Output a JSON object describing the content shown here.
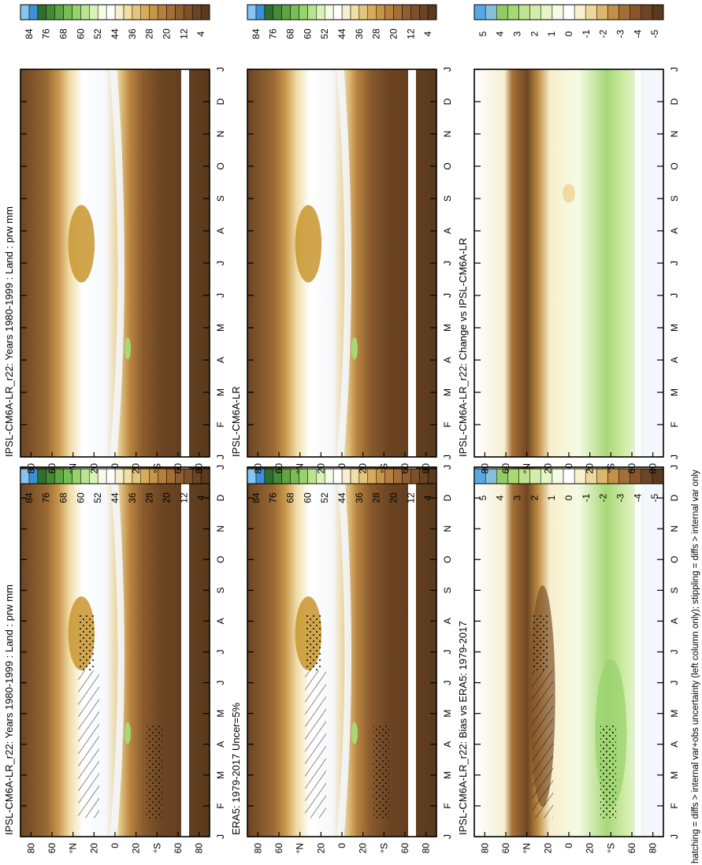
{
  "page": {
    "footnote": "hatching = diffs > internal var+obs uncertainty (left column only); stippling = diffs > internal var only"
  },
  "colors": {
    "abs_scale": [
      "#5a3a1c",
      "#6b4423",
      "#7d5129",
      "#8f5f30",
      "#a46f36",
      "#b67f3d",
      "#c79546",
      "#d6ac5c",
      "#e4c57e",
      "#f0dea5",
      "#f8efcf",
      "#ffffff",
      "#f5fbe8",
      "#d9f2b7",
      "#b9e48e",
      "#97d26c",
      "#78bf53",
      "#5da443",
      "#468a36",
      "#2f6f2d",
      "#3e8fd7",
      "#86c4f1"
    ],
    "diff_scale": [
      "#5a3a1c",
      "#6e4523",
      "#87562b",
      "#a46f36",
      "#c39047",
      "#dcb66c",
      "#eed79d",
      "#f7efcd",
      "#ffffff",
      "#f6fbe4",
      "#e6f5c7",
      "#d2edaa",
      "#bde38e",
      "#a7d876",
      "#93cc64",
      "#84bfdc",
      "#56a8e6"
    ],
    "abs_background": "#6b4423",
    "diff_background": "#f4f7fc"
  },
  "chart_data": [
    {
      "type": "heatmap",
      "title": "IPSL-CM6A-LR_r22: Years 1980-1999 : Land : prw mm",
      "x": [
        "J",
        "F",
        "M",
        "A",
        "M",
        "J",
        "J",
        "A",
        "S",
        "O",
        "N",
        "D",
        "J"
      ],
      "y_ticks": [
        "80",
        "60",
        "°N",
        "20",
        "0",
        "20",
        "°S",
        "60",
        "80"
      ],
      "ylim": [
        -90,
        90
      ],
      "colorbar_ticks": [
        "84",
        "76",
        "68",
        "60",
        "52",
        "44",
        "36",
        "28",
        "20",
        "12",
        "4"
      ],
      "hatching": true,
      "stippling": true
    },
    {
      "type": "heatmap",
      "title": "IPSL-CM6A-LR_r22: Years 1980-1999 : Land : prw mm",
      "x": [
        "J",
        "F",
        "M",
        "A",
        "M",
        "J",
        "J",
        "A",
        "S",
        "O",
        "N",
        "D",
        "J"
      ],
      "y_ticks": [
        "80",
        "60",
        "°N",
        "20",
        "0",
        "20",
        "°S",
        "60",
        "80"
      ],
      "ylim": [
        -90,
        90
      ],
      "colorbar_ticks": [
        "84",
        "76",
        "68",
        "60",
        "52",
        "44",
        "36",
        "28",
        "20",
        "12",
        "4"
      ],
      "hatching": false,
      "stippling": false
    },
    {
      "type": "heatmap",
      "title": "ERA5: 1979-2017 Uncer=5%",
      "x": [
        "J",
        "F",
        "M",
        "A",
        "M",
        "J",
        "J",
        "A",
        "S",
        "O",
        "N",
        "D",
        "J"
      ],
      "y_ticks": [
        "80",
        "60",
        "°N",
        "20",
        "0",
        "20",
        "°S",
        "60",
        "80"
      ],
      "ylim": [
        -90,
        90
      ],
      "colorbar_ticks": [
        "84",
        "76",
        "68",
        "60",
        "52",
        "44",
        "36",
        "28",
        "20",
        "12",
        "4"
      ],
      "hatching": true,
      "stippling": true
    },
    {
      "type": "heatmap",
      "title": "IPSL-CM6A-LR",
      "x": [
        "J",
        "F",
        "M",
        "A",
        "M",
        "J",
        "J",
        "A",
        "S",
        "O",
        "N",
        "D",
        "J"
      ],
      "y_ticks": [
        "80",
        "60",
        "°N",
        "20",
        "0",
        "20",
        "°S",
        "60",
        "80"
      ],
      "ylim": [
        -90,
        90
      ],
      "colorbar_ticks": [
        "84",
        "76",
        "68",
        "60",
        "52",
        "44",
        "36",
        "28",
        "20",
        "12",
        "4"
      ],
      "hatching": false,
      "stippling": false
    },
    {
      "type": "heatmap",
      "title": "IPSL-CM6A-LR_r22: Bias vs ERA5: 1979-2017",
      "x": [
        "J",
        "F",
        "M",
        "A",
        "M",
        "J",
        "J",
        "A",
        "S",
        "O",
        "N",
        "D",
        "J"
      ],
      "y_ticks": [
        "80",
        "60",
        "°N",
        "20",
        "0",
        "20",
        "°S",
        "60",
        "80"
      ],
      "ylim": [
        -90,
        90
      ],
      "colorbar_ticks": [
        "5",
        "4",
        "3",
        "2",
        "1",
        "0",
        "-1",
        "-2",
        "-3",
        "-4",
        "-5"
      ],
      "hatching": true,
      "stippling": true
    },
    {
      "type": "heatmap",
      "title": "IPSL-CM6A-LR_r22: Change vs IPSL-CM6A-LR",
      "x": [
        "J",
        "F",
        "M",
        "A",
        "M",
        "J",
        "J",
        "A",
        "S",
        "O",
        "N",
        "D",
        "J"
      ],
      "y_ticks": [
        "80",
        "60",
        "°N",
        "20",
        "0",
        "20",
        "°S",
        "60",
        "80"
      ],
      "ylim": [
        -90,
        90
      ],
      "colorbar_ticks": [
        "5",
        "4",
        "3",
        "2",
        "1",
        "0",
        "-1",
        "-2",
        "-3",
        "-4",
        "-5"
      ],
      "hatching": false,
      "stippling": false
    }
  ]
}
